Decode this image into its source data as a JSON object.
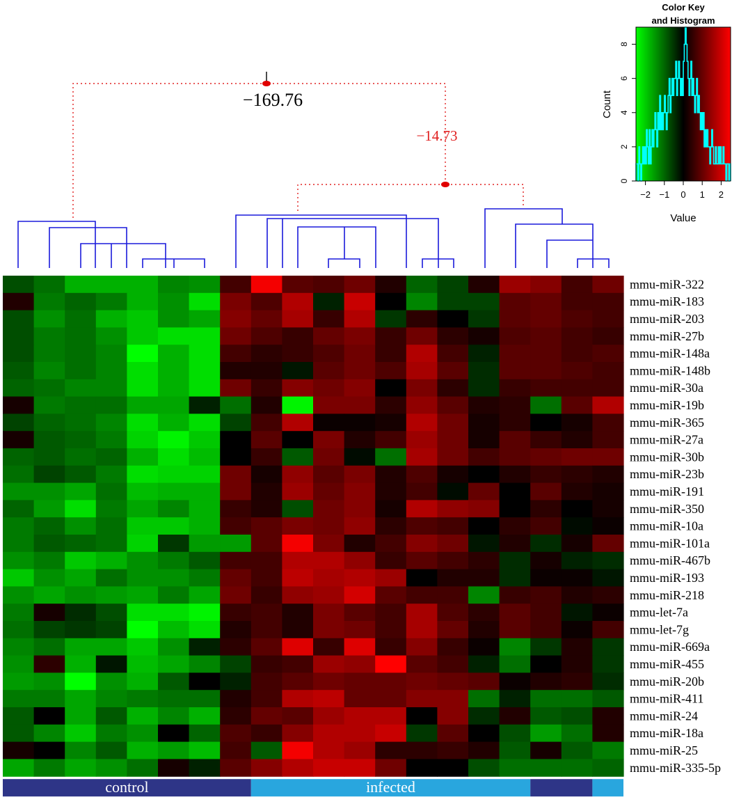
{
  "chart_data": {
    "type": "heatmap",
    "rows": [
      "mmu-miR-322",
      "mmu-miR-183",
      "mmu-miR-203",
      "mmu-miR-27b",
      "mmu-miR-148a",
      "mmu-miR-148b",
      "mmu-miR-30a",
      "mmu-miR-19b",
      "mmu-miR-365",
      "mmu-miR-27a",
      "mmu-miR-30b",
      "mmu-miR-23b",
      "mmu-miR-191",
      "mmu-miR-350",
      "mmu-miR-10a",
      "mmu-miR-101a",
      "mmu-miR-467b",
      "mmu-miR-193",
      "mmu-miR-218",
      "mmu-let-7a",
      "mmu-let-7g",
      "mmu-miR-669a",
      "mmu-miR-455",
      "mmu-miR-20b",
      "mmu-miR-411",
      "mmu-miR-24",
      "mmu-miR-18a",
      "mmu-miR-25",
      "mmu-miR-335-5p"
    ],
    "groups": [
      {
        "label": "control",
        "count": 8,
        "color": "#2e3587"
      },
      {
        "label": "infected",
        "count": 9,
        "color": "#29a6de"
      },
      {
        "label": "",
        "count": 2,
        "color": "#2e3587"
      },
      {
        "label": "",
        "count": 1,
        "color": "#29a6de"
      }
    ],
    "values": [
      [
        -0.7,
        -1.0,
        -1.6,
        -1.6,
        -1.6,
        -1.2,
        -1.3,
        0.6,
        2.2,
        0.8,
        0.7,
        1.0,
        0.3,
        -0.9,
        -0.6,
        0.3,
        1.4,
        1.2,
        0.6,
        1.0
      ],
      [
        0.3,
        -1.1,
        -0.9,
        -1.1,
        -1.6,
        -1.3,
        -2.0,
        1.1,
        0.7,
        1.6,
        -0.3,
        1.8,
        0.0,
        -1.2,
        -0.6,
        -0.6,
        0.8,
        0.9,
        0.6,
        0.6
      ],
      [
        -0.7,
        -1.3,
        -1.0,
        -1.6,
        -1.8,
        -1.3,
        -1.5,
        1.2,
        0.9,
        1.5,
        0.5,
        1.6,
        -0.5,
        0.4,
        0.0,
        -0.5,
        0.8,
        0.9,
        0.7,
        0.6
      ],
      [
        -0.7,
        -1.1,
        -1.0,
        -1.3,
        -1.8,
        -2.0,
        -2.0,
        1.0,
        0.7,
        0.5,
        0.9,
        1.1,
        0.5,
        1.0,
        0.4,
        0.2,
        0.7,
        0.8,
        0.6,
        0.5
      ],
      [
        -0.7,
        -1.1,
        -1.0,
        -1.2,
        -2.3,
        -1.6,
        -2.0,
        0.6,
        0.4,
        0.5,
        0.7,
        1.0,
        0.5,
        1.6,
        0.6,
        -0.3,
        0.8,
        0.8,
        0.6,
        0.7
      ],
      [
        -0.8,
        -1.2,
        -1.0,
        -1.2,
        -2.0,
        -1.6,
        -2.0,
        0.3,
        0.3,
        -0.2,
        0.8,
        1.0,
        0.7,
        1.5,
        0.8,
        -0.4,
        0.8,
        0.8,
        0.7,
        0.6
      ],
      [
        -0.9,
        -1.0,
        -1.2,
        -1.2,
        -2.0,
        -1.6,
        -2.0,
        1.0,
        0.5,
        1.2,
        1.0,
        1.2,
        0.0,
        1.1,
        0.4,
        -0.4,
        0.5,
        0.6,
        0.6,
        0.6
      ],
      [
        0.2,
        -1.1,
        -1.0,
        -1.0,
        -1.5,
        -1.5,
        -0.3,
        -1.0,
        0.3,
        -2.2,
        1.1,
        1.1,
        0.4,
        1.3,
        0.8,
        0.3,
        0.4,
        -1.0,
        0.8,
        1.6
      ],
      [
        -0.6,
        -0.9,
        -1.0,
        -1.2,
        -2.0,
        -1.6,
        -2.0,
        -0.6,
        0.6,
        1.6,
        0.1,
        0.1,
        0.2,
        1.6,
        1.0,
        0.2,
        0.4,
        0.0,
        0.2,
        0.6
      ],
      [
        0.2,
        -0.8,
        -0.9,
        -1.1,
        -1.9,
        -2.2,
        -1.8,
        0.0,
        0.8,
        0.0,
        1.1,
        0.3,
        0.6,
        1.4,
        1.0,
        0.2,
        0.8,
        0.5,
        0.3,
        0.6
      ],
      [
        -0.9,
        -0.8,
        -1.0,
        -0.9,
        -1.6,
        -2.0,
        -1.7,
        0.0,
        0.5,
        -0.8,
        1.0,
        -0.1,
        -1.0,
        1.5,
        1.0,
        0.6,
        0.8,
        0.9,
        1.0,
        1.0
      ],
      [
        -1.0,
        -0.6,
        -0.8,
        -1.1,
        -2.0,
        -1.9,
        -1.9,
        1.0,
        0.2,
        1.3,
        0.8,
        1.1,
        0.3,
        0.7,
        0.2,
        0.0,
        0.3,
        0.5,
        0.4,
        0.3
      ],
      [
        -1.3,
        -1.3,
        -1.5,
        -1.0,
        -1.7,
        -1.6,
        -1.6,
        1.0,
        0.3,
        1.4,
        0.9,
        1.2,
        0.3,
        0.6,
        -0.1,
        0.9,
        0.0,
        0.8,
        0.3,
        0.2
      ],
      [
        -0.9,
        -1.4,
        -2.0,
        -1.1,
        -1.5,
        -1.2,
        -1.6,
        0.5,
        0.3,
        -0.7,
        1.0,
        1.2,
        0.2,
        1.6,
        1.3,
        1.2,
        0.0,
        0.4,
        0.0,
        0.2
      ],
      [
        -1.1,
        -0.9,
        -1.3,
        -1.0,
        -1.8,
        -1.8,
        -1.6,
        0.6,
        0.8,
        1.1,
        1.0,
        1.3,
        0.4,
        0.7,
        0.6,
        0.0,
        0.4,
        0.6,
        -0.1,
        0.1
      ],
      [
        -1.1,
        -0.8,
        -0.9,
        -1.0,
        -1.9,
        -0.5,
        -1.4,
        -1.4,
        0.8,
        2.2,
        1.1,
        0.3,
        0.6,
        1.2,
        1.0,
        -0.2,
        0.3,
        -0.4,
        0.2,
        0.9
      ],
      [
        -1.3,
        -1.1,
        -1.8,
        -1.6,
        -1.3,
        -1.1,
        -0.8,
        0.6,
        0.6,
        1.6,
        1.6,
        1.3,
        0.5,
        0.8,
        0.6,
        0.4,
        -0.4,
        0.2,
        -0.3,
        -0.4
      ],
      [
        -1.8,
        -1.3,
        -1.5,
        -1.0,
        -1.3,
        -1.3,
        -1.1,
        0.9,
        0.6,
        1.7,
        1.5,
        1.6,
        1.4,
        0.0,
        0.3,
        0.3,
        -0.4,
        0.1,
        0.1,
        -0.2
      ],
      [
        -1.3,
        -1.5,
        -1.3,
        -1.4,
        -1.5,
        -1.1,
        -1.5,
        1.0,
        0.5,
        1.3,
        1.4,
        1.9,
        0.8,
        0.6,
        0.6,
        -1.2,
        0.5,
        0.6,
        0.3,
        0.4
      ],
      [
        -1.1,
        0.2,
        -0.4,
        -0.7,
        -2.0,
        -2.0,
        -2.2,
        0.5,
        0.6,
        0.3,
        1.1,
        0.8,
        0.6,
        1.5,
        0.7,
        0.4,
        0.8,
        0.6,
        -0.2,
        0.1
      ],
      [
        -1.0,
        -0.6,
        -0.5,
        -0.6,
        -2.4,
        -1.7,
        -2.0,
        0.3,
        0.6,
        0.3,
        1.1,
        1.0,
        0.6,
        1.5,
        0.9,
        0.3,
        0.8,
        0.6,
        0.1,
        0.6
      ],
      [
        -1.2,
        -1.0,
        -1.5,
        -1.5,
        -1.8,
        -1.3,
        -0.3,
        0.4,
        0.8,
        2.0,
        0.5,
        2.0,
        0.5,
        1.2,
        0.5,
        0.1,
        -1.2,
        -0.5,
        0.3,
        -0.5
      ],
      [
        -1.3,
        0.4,
        -1.6,
        -0.2,
        -1.7,
        -1.5,
        -1.2,
        -0.6,
        0.5,
        0.6,
        1.4,
        1.3,
        2.4,
        0.8,
        0.6,
        -0.3,
        -1.0,
        0.0,
        0.3,
        -0.5
      ],
      [
        -1.4,
        -1.3,
        -2.4,
        -1.3,
        -1.6,
        -0.8,
        0.0,
        -0.3,
        0.6,
        0.8,
        1.0,
        0.9,
        0.9,
        1.0,
        0.9,
        0.8,
        0.1,
        0.3,
        0.4,
        -0.4
      ],
      [
        -1.1,
        -1.1,
        -1.5,
        -1.2,
        -1.1,
        -1.0,
        -1.0,
        0.3,
        0.6,
        1.6,
        1.7,
        0.9,
        0.9,
        1.2,
        1.2,
        -1.0,
        -0.3,
        -1.0,
        -1.0,
        -0.8
      ],
      [
        -0.8,
        0.0,
        -1.5,
        -0.8,
        -1.6,
        -1.2,
        -1.6,
        0.4,
        0.9,
        0.8,
        1.4,
        1.6,
        1.6,
        0.0,
        1.2,
        -0.4,
        0.3,
        -0.8,
        -0.7,
        0.3
      ],
      [
        -0.8,
        -1.2,
        -1.8,
        -1.1,
        -1.3,
        0.0,
        -0.9,
        0.7,
        0.5,
        1.2,
        1.6,
        1.6,
        1.8,
        -0.5,
        0.8,
        0.0,
        -0.7,
        -1.4,
        -1.0,
        0.3
      ],
      [
        0.2,
        0.0,
        -1.2,
        -0.8,
        -1.6,
        -1.4,
        -1.7,
        0.6,
        -0.8,
        2.2,
        1.6,
        1.4,
        0.4,
        0.4,
        0.5,
        0.3,
        -0.8,
        0.2,
        -0.8,
        -1.1
      ],
      [
        -1.5,
        -1.1,
        -1.5,
        -1.3,
        -1.0,
        0.2,
        -0.3,
        0.8,
        1.2,
        1.6,
        1.8,
        1.8,
        1.0,
        0.0,
        0.0,
        -0.7,
        -1.0,
        -1.0,
        -1.0,
        -0.9
      ]
    ],
    "annotations": {
      "root": "−169.76",
      "sub": "−14.73"
    },
    "color_key": {
      "title": "Color Key",
      "subtitle": "and Histogram",
      "xlabel": "Value",
      "ylabel": "Count",
      "xlim": [
        -2.5,
        2.5
      ],
      "ylim": [
        0,
        9
      ],
      "xticks": [
        -2,
        -1,
        0,
        1,
        2
      ],
      "yticks": [
        0,
        2,
        4,
        6,
        8
      ],
      "colors": {
        "low": "#00ff00",
        "mid": "#000000",
        "high": "#ff0000"
      },
      "histogram_color": "#00ffff",
      "histogram_counts": [
        1,
        1,
        0,
        2,
        1,
        0,
        1,
        2,
        1,
        2,
        1,
        3,
        2,
        1,
        3,
        1,
        2,
        3,
        2,
        3,
        4,
        3,
        2,
        4,
        3,
        5,
        3,
        4,
        3,
        4,
        5,
        4,
        3,
        4,
        5,
        6,
        4,
        5,
        6,
        5,
        6,
        6,
        7,
        5,
        6,
        7,
        6,
        5,
        6,
        5,
        7,
        8,
        9,
        8,
        7,
        6,
        5,
        6,
        7,
        5,
        6,
        5,
        4,
        5,
        6,
        4,
        5,
        4,
        3,
        4,
        3,
        4,
        2,
        3,
        2,
        3,
        2,
        2,
        1,
        2,
        3,
        2,
        1,
        1,
        2,
        1,
        1,
        2,
        1,
        2,
        1,
        1,
        2,
        1,
        1,
        0,
        1,
        1,
        0,
        1
      ]
    }
  }
}
